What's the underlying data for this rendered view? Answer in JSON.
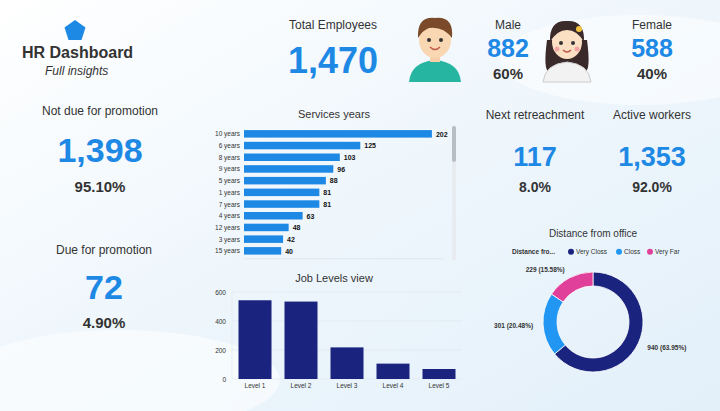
{
  "header": {
    "title": "HR Dashboard",
    "subtitle": "Full insights"
  },
  "kpis": {
    "total": {
      "label": "Total Employees",
      "value": "1,470"
    },
    "male": {
      "label": "Male",
      "value": "882",
      "percent": "60%"
    },
    "female": {
      "label": "Female",
      "value": "588",
      "percent": "40%"
    },
    "not_due": {
      "label": "Not due for promotion",
      "value": "1,398",
      "percent": "95.10%"
    },
    "due": {
      "label": "Due for promotion",
      "value": "72",
      "percent": "4.90%"
    },
    "retrenchment": {
      "label": "Next retreachment",
      "value": "117",
      "percent": "8.0%"
    },
    "active": {
      "label": "Active workers",
      "value": "1,353",
      "percent": "92.0%"
    }
  },
  "chart_data": [
    {
      "type": "bar",
      "title": "Services years",
      "orientation": "horizontal",
      "categories": [
        "10 years",
        "6 years",
        "8 years",
        "9 years",
        "5 years",
        "1 years",
        "7 years",
        "4 years",
        "12 years",
        "3 years",
        "15 years"
      ],
      "values": [
        202,
        125,
        103,
        96,
        88,
        81,
        81,
        63,
        48,
        42,
        40
      ],
      "color": "#1e88e5",
      "xlim": [
        0,
        215
      ],
      "data_labels": true,
      "tick_labels": "y"
    },
    {
      "type": "bar",
      "title": "Job Levels view",
      "categories": [
        "Level 1",
        "Level 2",
        "Level 3",
        "Level 4",
        "Level 5"
      ],
      "values": [
        543,
        534,
        218,
        106,
        69
      ],
      "color": "#1a237e",
      "ylim": [
        0,
        600
      ],
      "yticks": [
        0,
        200,
        400,
        600
      ],
      "grid": true
    },
    {
      "type": "donut",
      "title": "Distance from office",
      "legend_title": "Distance fro...",
      "categories": [
        "Very Closs",
        "Closs",
        "Very Far"
      ],
      "values": [
        940,
        301,
        229
      ],
      "value_labels": [
        "940 (63.95%)",
        "301 (20.48%)",
        "229 (15.58%)"
      ],
      "colors": [
        "#1a237e",
        "#2196f3",
        "#e0409a"
      ],
      "legend": "top",
      "data_labels": true
    }
  ]
}
